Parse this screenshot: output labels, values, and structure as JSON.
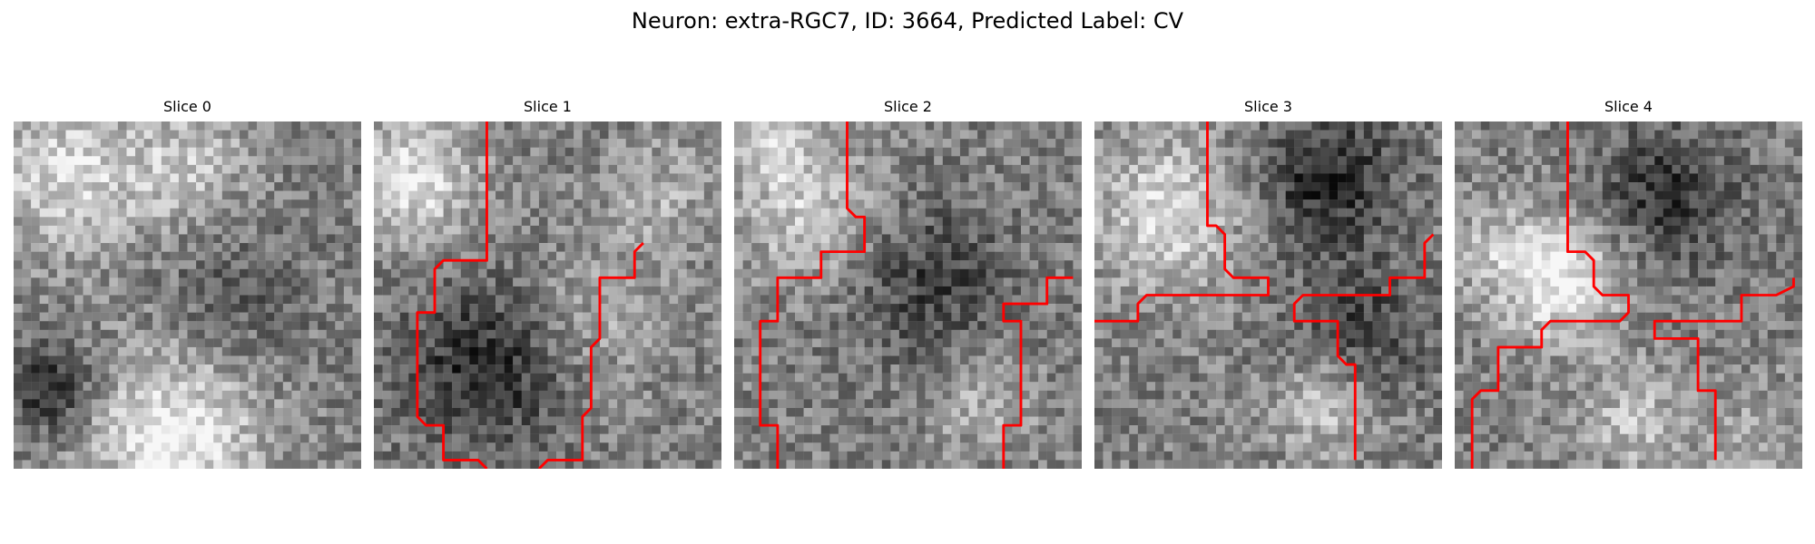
{
  "figure": {
    "title": "Neuron: extra-RGC7, ID: 3664, Predicted Label: CV"
  },
  "panels": [
    {
      "title": "Slice 0",
      "traces": []
    },
    {
      "title": "Slice 1",
      "traces": [
        [
          [
            13,
            0
          ],
          [
            13,
            16
          ],
          [
            8,
            16
          ],
          [
            7,
            17
          ],
          [
            7,
            22
          ],
          [
            5,
            22
          ],
          [
            5,
            34
          ],
          [
            6,
            35
          ],
          [
            8,
            35
          ],
          [
            8,
            39
          ],
          [
            12,
            39
          ],
          [
            13,
            40
          ]
        ],
        [
          [
            31,
            14
          ],
          [
            30,
            15
          ],
          [
            30,
            18
          ],
          [
            26,
            18
          ],
          [
            26,
            25
          ],
          [
            25,
            26
          ],
          [
            25,
            33
          ],
          [
            24,
            34
          ],
          [
            24,
            39
          ],
          [
            20,
            39
          ],
          [
            19,
            40
          ]
        ]
      ]
    },
    {
      "title": "Slice 2",
      "traces": [
        [
          [
            13,
            0
          ],
          [
            13,
            10
          ],
          [
            14,
            11
          ],
          [
            15,
            11
          ],
          [
            15,
            15
          ],
          [
            10,
            15
          ],
          [
            10,
            18
          ],
          [
            5,
            18
          ],
          [
            5,
            23
          ],
          [
            3,
            23
          ],
          [
            3,
            35
          ],
          [
            5,
            35
          ],
          [
            5,
            40
          ]
        ],
        [
          [
            39,
            18
          ],
          [
            36,
            18
          ],
          [
            36,
            21
          ],
          [
            31,
            21
          ],
          [
            31,
            23
          ],
          [
            33,
            23
          ],
          [
            33,
            35
          ],
          [
            31,
            35
          ],
          [
            31,
            40
          ]
        ]
      ]
    },
    {
      "title": "Slice 3",
      "traces": [
        [
          [
            13,
            0
          ],
          [
            13,
            12
          ],
          [
            14,
            12
          ],
          [
            15,
            13
          ],
          [
            15,
            17
          ],
          [
            16,
            18
          ],
          [
            20,
            18
          ],
          [
            20,
            20
          ],
          [
            6,
            20
          ],
          [
            5,
            21
          ],
          [
            5,
            23
          ],
          [
            0,
            23
          ]
        ],
        [
          [
            39,
            13
          ],
          [
            38,
            14
          ],
          [
            38,
            18
          ],
          [
            34,
            18
          ],
          [
            34,
            20
          ],
          [
            24,
            20
          ],
          [
            23,
            21
          ],
          [
            23,
            23
          ],
          [
            28,
            23
          ],
          [
            28,
            27
          ],
          [
            29,
            28
          ],
          [
            30,
            28
          ],
          [
            30,
            39
          ]
        ]
      ]
    },
    {
      "title": "Slice 4",
      "traces": [
        [
          [
            13,
            0
          ],
          [
            13,
            15
          ],
          [
            15,
            15
          ],
          [
            16,
            16
          ],
          [
            16,
            19
          ],
          [
            17,
            20
          ],
          [
            20,
            20
          ],
          [
            20,
            22
          ],
          [
            19,
            23
          ],
          [
            11,
            23
          ],
          [
            10,
            24
          ],
          [
            10,
            26
          ],
          [
            5,
            26
          ],
          [
            5,
            31
          ],
          [
            3,
            31
          ],
          [
            2,
            32
          ],
          [
            2,
            40
          ]
        ],
        [
          [
            39,
            18
          ],
          [
            39,
            19
          ],
          [
            37,
            20
          ],
          [
            33,
            20
          ],
          [
            33,
            23
          ],
          [
            23,
            23
          ],
          [
            23,
            25
          ],
          [
            28,
            25
          ],
          [
            28,
            31
          ],
          [
            30,
            31
          ],
          [
            30,
            39
          ]
        ]
      ]
    }
  ]
}
